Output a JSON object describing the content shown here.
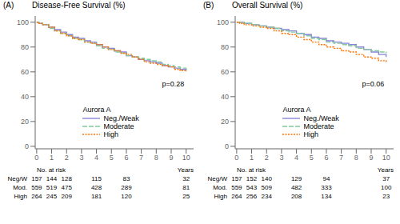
{
  "chart_data": [
    {
      "type": "step",
      "title": "Disease-Free Survival (%)",
      "panel_label": "(A)",
      "annotation": "p=0.28",
      "legend_title": "Aurora A",
      "legend": "lower center",
      "grid": false,
      "xlim": [
        -0.1,
        10.5
      ],
      "ylim": [
        -2,
        105
      ],
      "xticks": [
        0,
        1,
        2,
        3,
        4,
        5,
        6,
        7,
        8,
        9,
        10
      ],
      "yticks": [
        0,
        20,
        40,
        60,
        80,
        100
      ],
      "series": [
        {
          "name": "Neg./Weak",
          "color": "#8884d8",
          "line_style": "solid",
          "x": [
            0,
            0.15,
            0.4,
            0.8,
            1.2,
            1.6,
            2.0,
            2.4,
            2.8,
            3.2,
            3.6,
            4.0,
            4.4,
            4.8,
            5.2,
            5.6,
            6.0,
            6.4,
            6.8,
            7.2,
            7.6,
            8.0,
            8.4,
            8.8,
            9.2,
            9.6,
            10.0
          ],
          "values": [
            100,
            99,
            98,
            96,
            94,
            92,
            90,
            88,
            87,
            85,
            84,
            82,
            80,
            79,
            77,
            76,
            73,
            72,
            70,
            69,
            68,
            67,
            65,
            64,
            63,
            62,
            61
          ]
        },
        {
          "name": "Moderate",
          "color": "#82ca9d",
          "line_style": "dashed",
          "x": [
            0,
            0.15,
            0.4,
            0.8,
            1.2,
            1.6,
            2.0,
            2.4,
            2.8,
            3.2,
            3.6,
            4.0,
            4.4,
            4.8,
            5.2,
            5.6,
            6.0,
            6.4,
            6.8,
            7.2,
            7.6,
            8.0,
            8.4,
            8.8,
            9.2,
            9.6,
            10.0
          ],
          "values": [
            100,
            99,
            98,
            95,
            93,
            91,
            89,
            87,
            86,
            84,
            83,
            81,
            79,
            78,
            76,
            75,
            73,
            72,
            71,
            70,
            69,
            68,
            66,
            65,
            64,
            63,
            62
          ]
        },
        {
          "name": "High",
          "color": "#ff7300",
          "line_style": "dotted",
          "x": [
            0,
            0.15,
            0.4,
            0.8,
            1.2,
            1.6,
            2.0,
            2.4,
            2.8,
            3.2,
            3.6,
            4.0,
            4.4,
            4.8,
            5.2,
            5.6,
            6.0,
            6.4,
            6.8,
            7.2,
            7.6,
            8.0,
            8.4,
            8.8,
            9.2,
            9.6,
            10.0
          ],
          "values": [
            100,
            99,
            98,
            96,
            93,
            91,
            89,
            87,
            86,
            84,
            83,
            82,
            80,
            78,
            77,
            75,
            74,
            72,
            70,
            68,
            67,
            66,
            65,
            64,
            62,
            61,
            60
          ]
        }
      ],
      "risk_table": {
        "header": "No. at risk",
        "axis_label": "Years",
        "labels": [
          "Neg/W",
          "Mod.",
          "High"
        ],
        "times": [
          0,
          1,
          2,
          4,
          6,
          10
        ],
        "values": [
          [
            157,
            144,
            128,
            115,
            83,
            32
          ],
          [
            559,
            519,
            475,
            428,
            289,
            81
          ],
          [
            264,
            245,
            209,
            181,
            120,
            25
          ]
        ]
      }
    },
    {
      "type": "step",
      "title": "Overall Survival (%)",
      "panel_label": "(B)",
      "annotation": "p=0.06",
      "legend_title": "Aurora A",
      "legend": "lower center",
      "grid": false,
      "xlim": [
        -0.1,
        10.5
      ],
      "ylim": [
        -2,
        105
      ],
      "xticks": [
        0,
        1,
        2,
        3,
        4,
        5,
        6,
        7,
        8,
        9,
        10
      ],
      "yticks": [
        0,
        20,
        40,
        60,
        80,
        100
      ],
      "series": [
        {
          "name": "Neg./Weak",
          "color": "#8884d8",
          "line_style": "solid",
          "x": [
            0,
            0.2,
            0.5,
            1.0,
            1.5,
            2.0,
            2.5,
            3.0,
            3.5,
            4.0,
            4.5,
            5.0,
            5.5,
            6.0,
            6.5,
            7.0,
            7.5,
            8.0,
            8.5,
            9.0,
            9.5,
            10.0
          ],
          "values": [
            100,
            100,
            99,
            98,
            97,
            96,
            95,
            94,
            93,
            91,
            90,
            88,
            87,
            85,
            84,
            83,
            82,
            80,
            78,
            76,
            74,
            72
          ]
        },
        {
          "name": "Moderate",
          "color": "#82ca9d",
          "line_style": "dashed",
          "x": [
            0,
            0.2,
            0.5,
            1.0,
            1.5,
            2.0,
            2.5,
            3.0,
            3.5,
            4.0,
            4.5,
            5.0,
            5.5,
            6.0,
            6.5,
            7.0,
            7.5,
            8.0,
            8.5,
            9.0,
            9.5,
            10.0
          ],
          "values": [
            100,
            100,
            99,
            98,
            97,
            96,
            95,
            93,
            92,
            91,
            89,
            87,
            86,
            84,
            83,
            82,
            81,
            79,
            78,
            77,
            76,
            75
          ]
        },
        {
          "name": "High",
          "color": "#ff7300",
          "line_style": "dotted",
          "x": [
            0,
            0.2,
            0.5,
            1.0,
            1.5,
            2.0,
            2.5,
            3.0,
            3.5,
            4.0,
            4.5,
            5.0,
            5.5,
            6.0,
            6.5,
            7.0,
            7.5,
            8.0,
            8.5,
            9.0,
            9.5,
            10.0
          ],
          "values": [
            100,
            99,
            98,
            97,
            96,
            95,
            93,
            91,
            90,
            88,
            86,
            84,
            82,
            80,
            79,
            77,
            76,
            74,
            72,
            71,
            69,
            68
          ]
        }
      ],
      "risk_table": {
        "header": "No. at risk",
        "axis_label": "Years",
        "labels": [
          "Neg/W",
          "Mod.",
          "High"
        ],
        "times": [
          0,
          1,
          2,
          4,
          6,
          10
        ],
        "values": [
          [
            157,
            152,
            140,
            129,
            94,
            37
          ],
          [
            559,
            543,
            509,
            482,
            333,
            100
          ],
          [
            264,
            256,
            234,
            208,
            134,
            23
          ]
        ]
      }
    }
  ]
}
